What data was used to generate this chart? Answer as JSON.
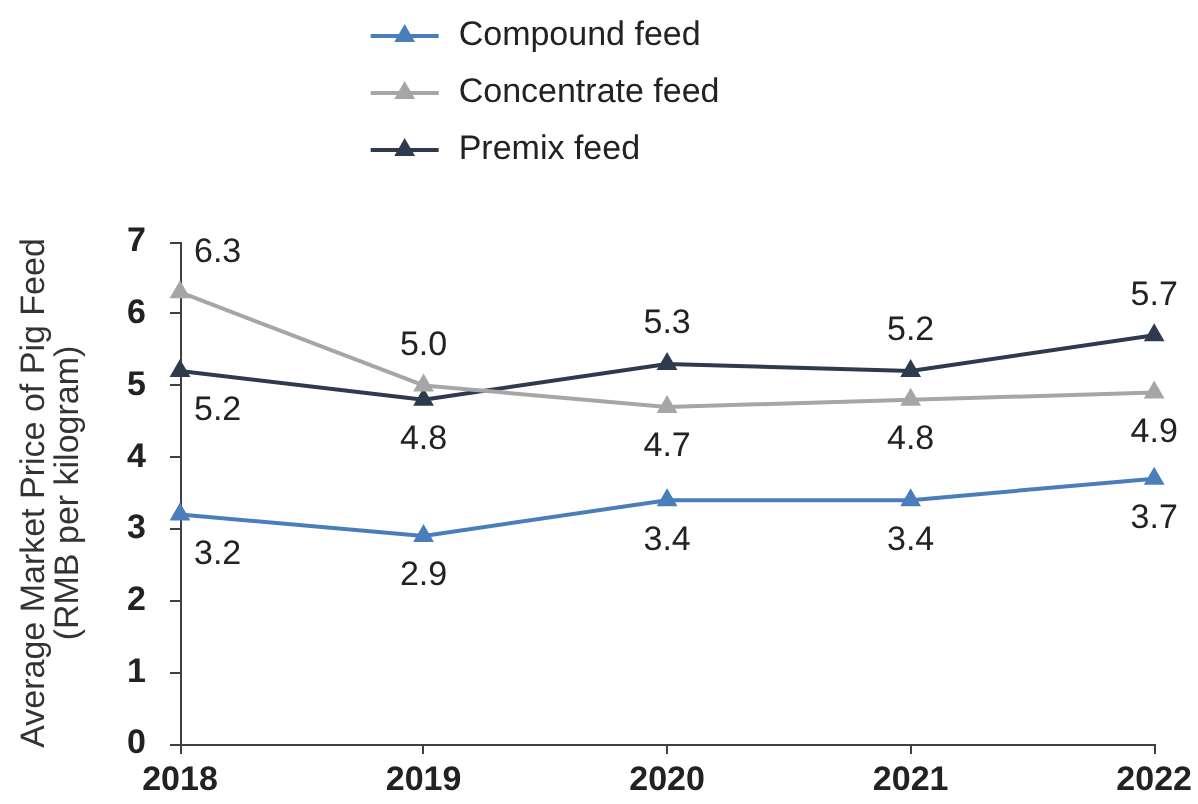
{
  "chart_data": {
    "type": "line",
    "ylabel": "Average Market Price of Pig Feed (RMB per kilogram)",
    "categories": [
      "2018",
      "2019",
      "2020",
      "2021",
      "2022"
    ],
    "series": [
      {
        "name": "Compound feed",
        "color": "#4a7ebb",
        "values": [
          3.2,
          2.9,
          3.4,
          3.4,
          3.7
        ],
        "value_labels": [
          "3.2",
          "2.9",
          "3.4",
          "3.4",
          "3.7"
        ]
      },
      {
        "name": "Concentrate feed",
        "color": "#a6a6a6",
        "values": [
          6.3,
          5.0,
          4.7,
          4.8,
          4.9
        ],
        "value_labels": [
          "6.3",
          "5.0",
          "4.7",
          "4.8",
          "4.9"
        ]
      },
      {
        "name": "Premix feed",
        "color": "#2e3b4e",
        "values": [
          5.2,
          4.8,
          5.3,
          5.2,
          5.7
        ],
        "value_labels": [
          "5.2",
          "4.8",
          "5.3",
          "5.2",
          "5.7"
        ]
      }
    ],
    "ylim": [
      0,
      7
    ],
    "yticks": [
      0,
      1,
      2,
      3,
      4,
      5,
      6,
      7
    ],
    "legend": "top",
    "marker": "triangle",
    "line_style": "solid"
  }
}
